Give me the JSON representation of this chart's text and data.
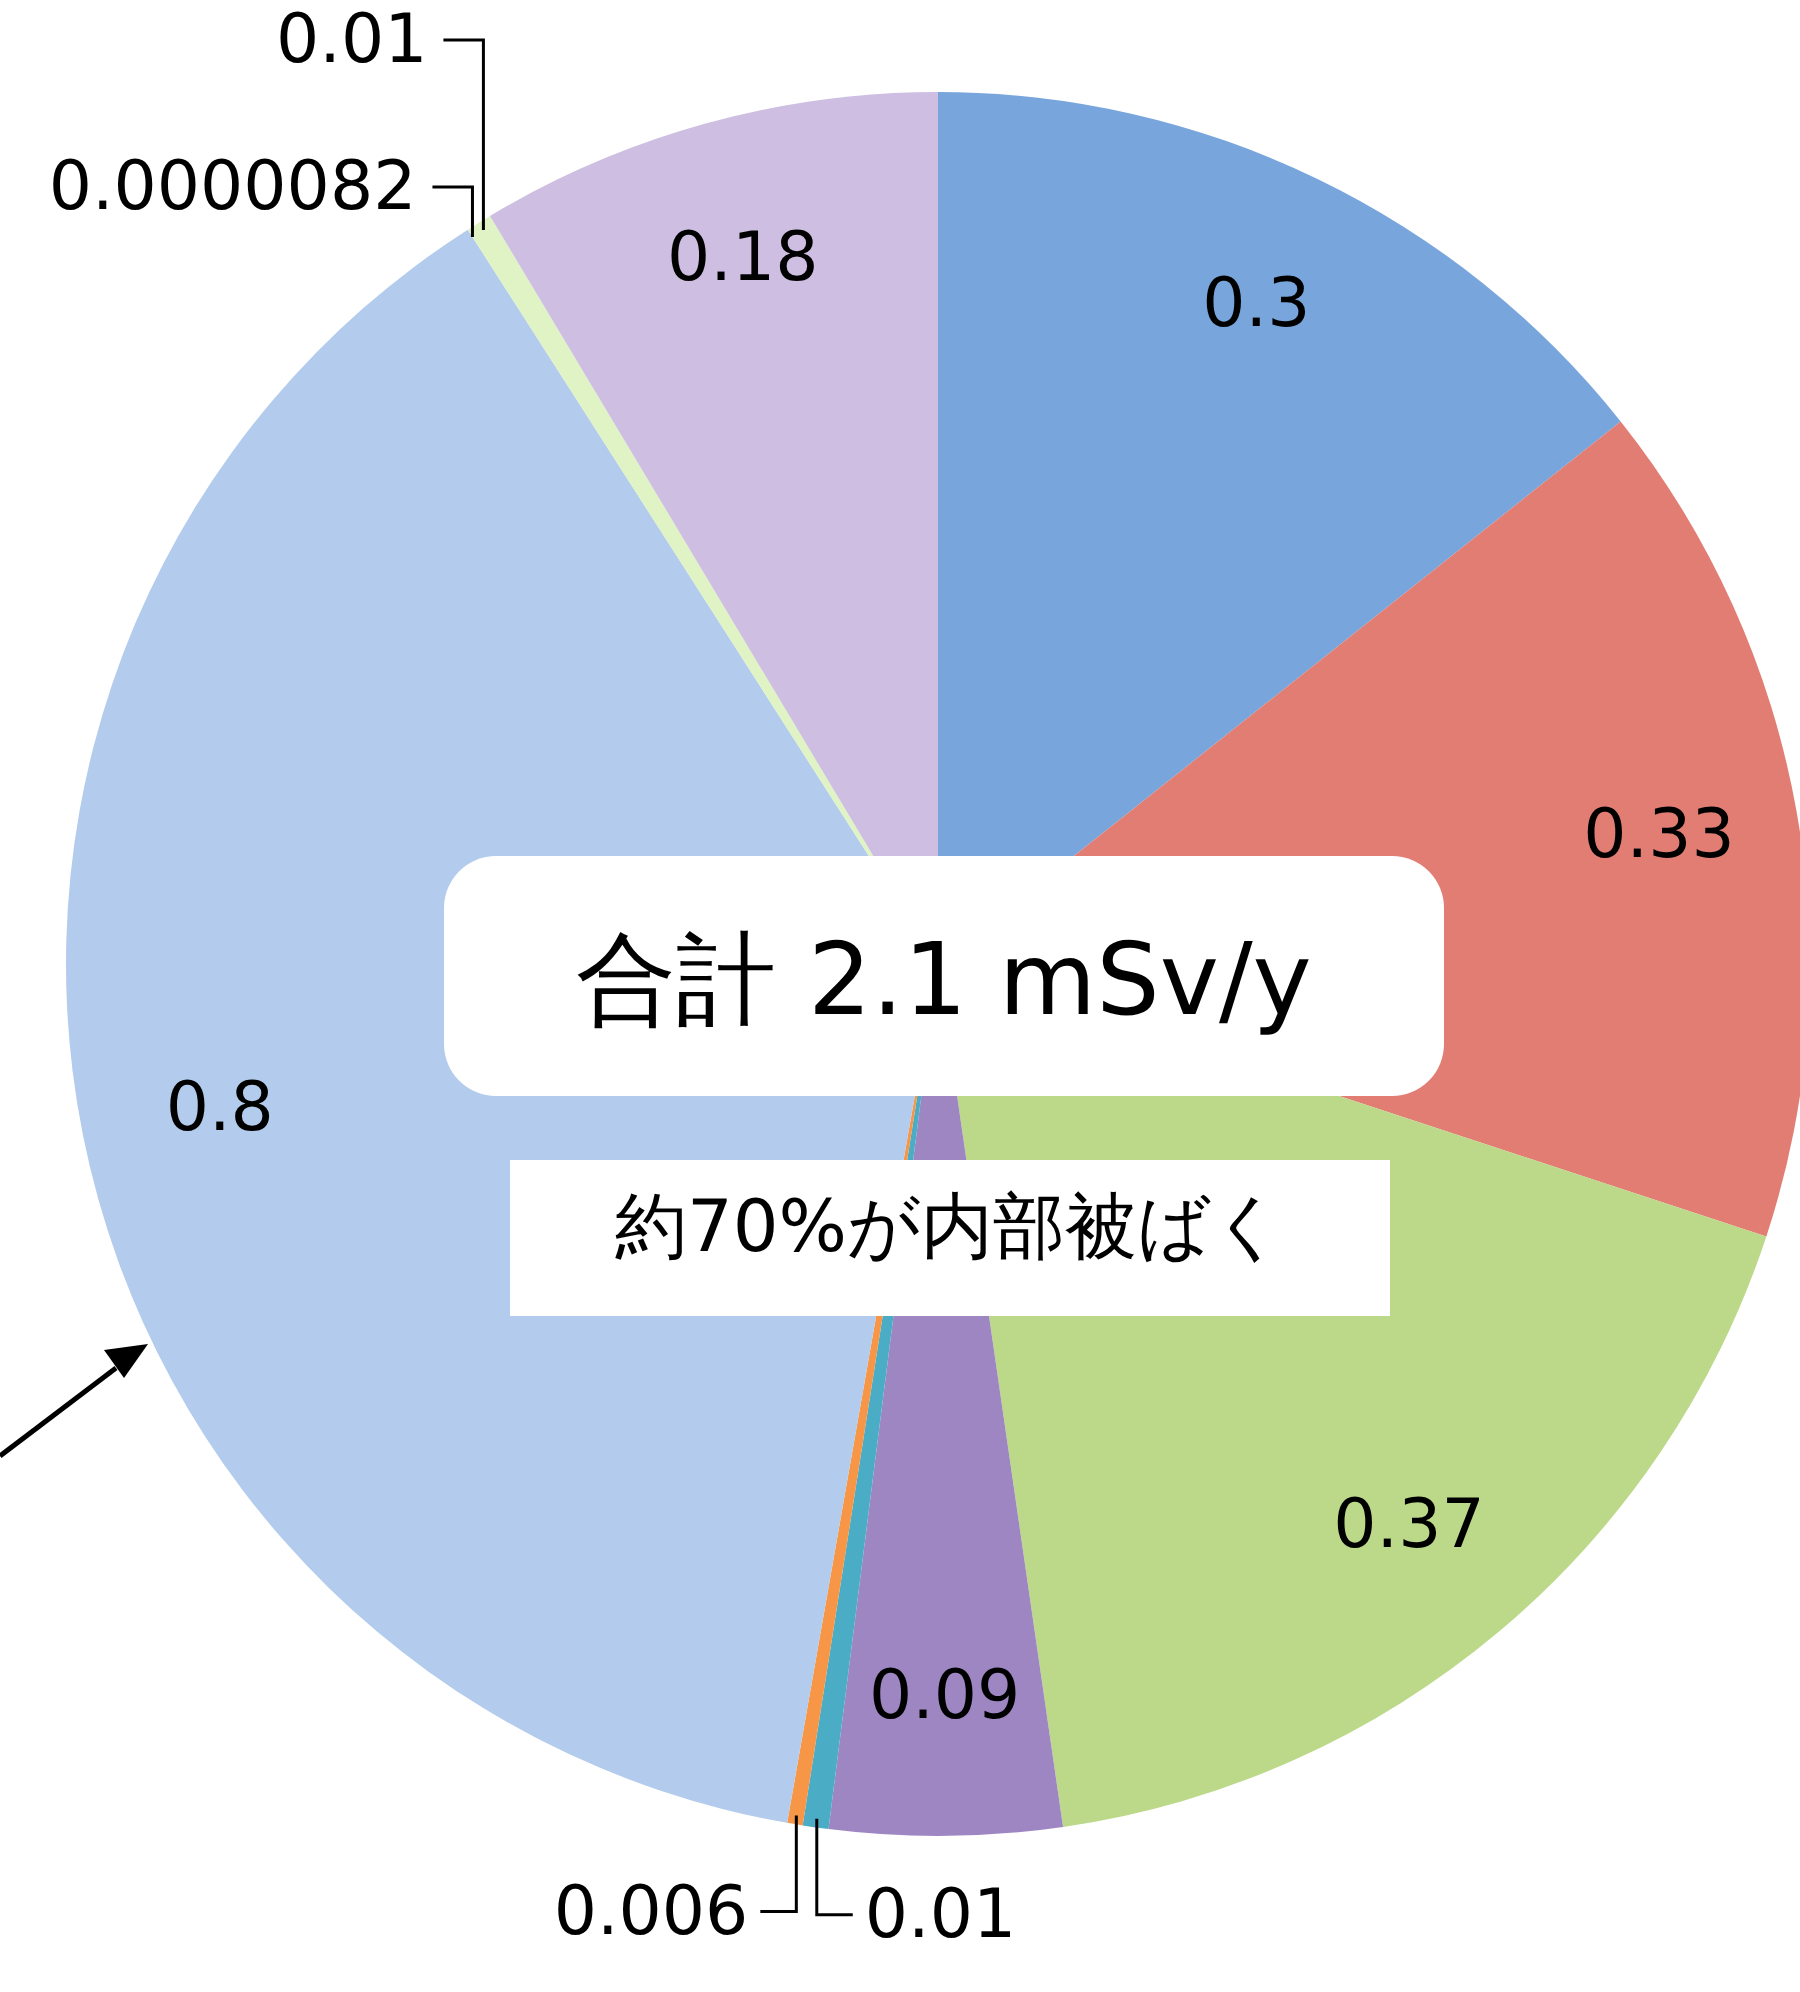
{
  "chart_data": {
    "type": "pie",
    "categories": [
      null,
      null,
      null,
      null,
      null,
      null,
      null,
      null,
      null,
      null
    ],
    "values": [
      0.3,
      0.33,
      0.37,
      0.09,
      0.01,
      0.006,
      0.8,
      8.2e-06,
      0.01,
      0.18
    ],
    "colors": [
      "#78a6dc",
      "#e27d74",
      "#bcd889",
      "#9e86c2",
      "#4bacc6",
      "#f79646",
      "#b3cbec",
      "#d2eeb0",
      "#dff3c4",
      "#cebee2"
    ],
    "value_labels": [
      "0.3",
      "0.33",
      "0.37",
      "0.09",
      "0.01",
      "0.006",
      "0.8",
      "0.0000082",
      "0.01",
      "0.18"
    ],
    "annotations": [
      "合計 2.1 mSv/y",
      "約70%が内部被ばく"
    ]
  }
}
